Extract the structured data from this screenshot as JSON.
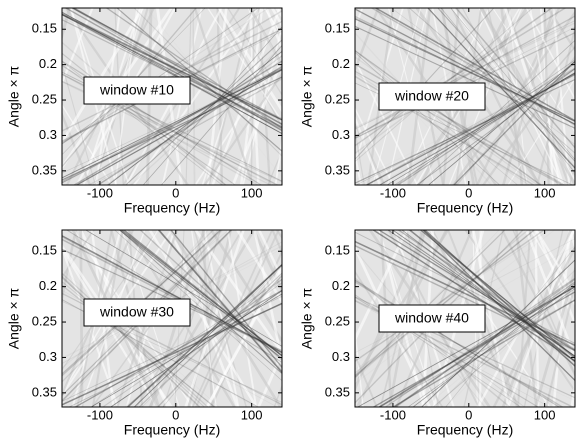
{
  "chart_data": [
    {
      "type": "image",
      "annotation": "window #10",
      "xlabel": "Frequency (Hz)",
      "ylabel": "Angle × π",
      "xlim": [
        -150,
        140
      ],
      "xticks": [
        -100,
        0,
        100
      ],
      "ylim": [
        0.12,
        0.37
      ],
      "yticks": [
        0.15,
        0.2,
        0.25,
        0.3,
        0.35
      ],
      "y_inverted": true
    },
    {
      "type": "image",
      "annotation": "window #20",
      "xlabel": "Frequency (Hz)",
      "ylabel": "Angle × π",
      "xlim": [
        -150,
        140
      ],
      "xticks": [
        -100,
        0,
        100
      ],
      "ylim": [
        0.12,
        0.37
      ],
      "yticks": [
        0.15,
        0.2,
        0.25,
        0.3,
        0.35
      ],
      "y_inverted": true
    },
    {
      "type": "image",
      "annotation": "window #30",
      "xlabel": "Frequency (Hz)",
      "ylabel": "Angle × π",
      "xlim": [
        -150,
        140
      ],
      "xticks": [
        -100,
        0,
        100
      ],
      "ylim": [
        0.12,
        0.37
      ],
      "yticks": [
        0.15,
        0.2,
        0.25,
        0.3,
        0.35
      ],
      "y_inverted": true
    },
    {
      "type": "image",
      "annotation": "window #40",
      "xlabel": "Frequency (Hz)",
      "ylabel": "Angle × π",
      "xlim": [
        -150,
        140
      ],
      "xticks": [
        -100,
        0,
        100
      ],
      "ylim": [
        0.12,
        0.37
      ],
      "yticks": [
        0.15,
        0.2,
        0.25,
        0.3,
        0.35
      ],
      "y_inverted": true
    }
  ]
}
